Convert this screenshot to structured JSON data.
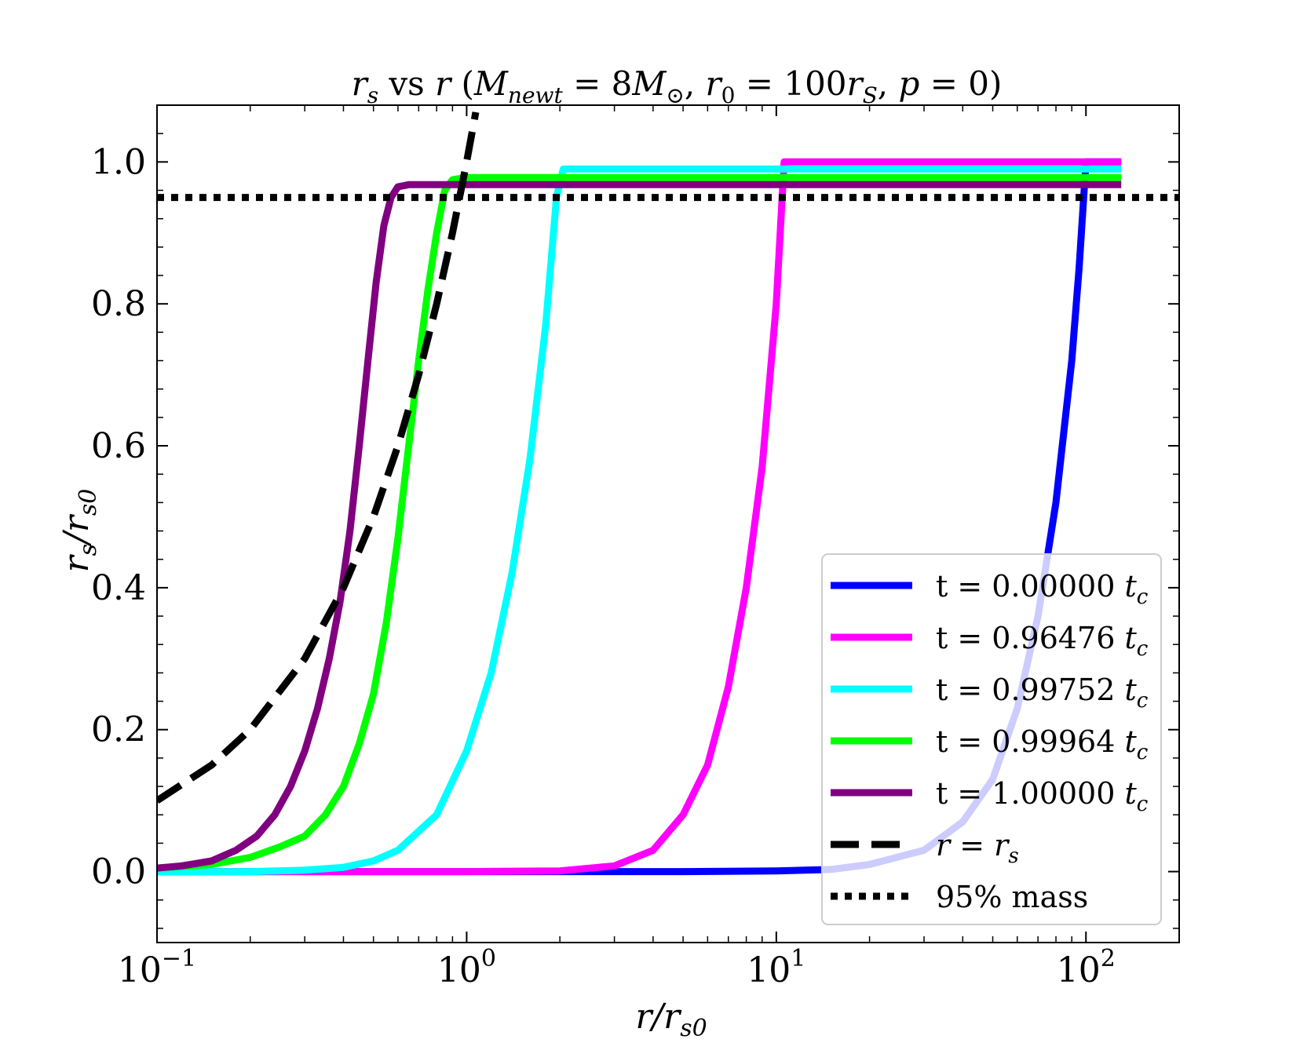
{
  "chart_data": {
    "type": "line",
    "title": "r_s vs r (M_newt = 8M_sun, r_0 = 100r_S, p = 0)",
    "title_parts": {
      "a": "r",
      "a_sub": "s",
      "vs": " vs ",
      "b": "r",
      "paren_open": " (",
      "m": "M",
      "m_sub": "newt",
      "eq1": " = 8",
      "m2": "M",
      "sun": "⊙",
      "comma1": ", ",
      "r0": "r",
      "r0_sub": "0",
      "eq2": " = 100",
      "rs": "r",
      "rs_sub": "S",
      "comma2": ", ",
      "p": "p",
      "eq3": " = 0)"
    },
    "xlabel": "r/r_s0",
    "xlabel_parts": {
      "main": "r/r",
      "sub": "s0"
    },
    "ylabel": "r_s/r_s0",
    "ylabel_parts": {
      "main": "r",
      "sub1": "s",
      "mid": "/r",
      "sub2": "s0"
    },
    "xscale": "log",
    "xlim": [
      0.1,
      200
    ],
    "ylim": [
      -0.1,
      1.08
    ],
    "x_ticks": [
      {
        "value": 0.1,
        "base": "10",
        "exp": "−1"
      },
      {
        "value": 1,
        "base": "10",
        "exp": "0"
      },
      {
        "value": 10,
        "base": "10",
        "exp": "1"
      },
      {
        "value": 100,
        "base": "10",
        "exp": "2"
      }
    ],
    "y_ticks": [
      "0.0",
      "0.2",
      "0.4",
      "0.6",
      "0.8",
      "1.0"
    ],
    "grid": false,
    "legend_position": "lower-right",
    "series": [
      {
        "name": "t = 0.00000 t_c",
        "label": "t = 0.00000 ",
        "unit": "t",
        "unit_sub": "c",
        "color": "#0000ff",
        "style": "solid",
        "x": [
          0.1,
          1,
          5,
          10,
          15,
          20,
          30,
          40,
          50,
          60,
          70,
          80,
          90,
          95,
          100,
          130
        ],
        "y": [
          0,
          0,
          0,
          0.001,
          0.003,
          0.01,
          0.03,
          0.07,
          0.13,
          0.23,
          0.36,
          0.52,
          0.72,
          0.85,
          1.0,
          1.0
        ]
      },
      {
        "name": "t = 0.96476 t_c",
        "label": "t = 0.96476 ",
        "unit": "t",
        "unit_sub": "c",
        "color": "#ff00ff",
        "style": "solid",
        "x": [
          0.1,
          1,
          2,
          3,
          4,
          5,
          6,
          7,
          8,
          9,
          10,
          10.6,
          15,
          130
        ],
        "y": [
          0,
          0,
          0.001,
          0.008,
          0.03,
          0.08,
          0.15,
          0.26,
          0.4,
          0.57,
          0.8,
          1.0,
          1.0,
          1.0
        ]
      },
      {
        "name": "t = 0.99752 t_c",
        "label": "t = 0.99752 ",
        "unit": "t",
        "unit_sub": "c",
        "color": "#00ffff",
        "style": "solid",
        "x": [
          0.1,
          0.2,
          0.3,
          0.4,
          0.5,
          0.6,
          0.8,
          1.0,
          1.2,
          1.4,
          1.6,
          1.8,
          1.95,
          2.05,
          3,
          130
        ],
        "y": [
          0,
          0,
          0.002,
          0.006,
          0.015,
          0.03,
          0.08,
          0.17,
          0.28,
          0.42,
          0.58,
          0.77,
          0.95,
          0.99,
          0.99,
          0.99
        ]
      },
      {
        "name": "t = 0.99964 t_c",
        "label": "t = 0.99964 ",
        "unit": "t",
        "unit_sub": "c",
        "color": "#00ff00",
        "style": "solid",
        "x": [
          0.1,
          0.15,
          0.2,
          0.25,
          0.3,
          0.35,
          0.4,
          0.45,
          0.5,
          0.55,
          0.6,
          0.65,
          0.7,
          0.75,
          0.8,
          0.85,
          0.9,
          1.0,
          130
        ],
        "y": [
          0.005,
          0.01,
          0.02,
          0.035,
          0.05,
          0.08,
          0.12,
          0.18,
          0.25,
          0.35,
          0.47,
          0.6,
          0.72,
          0.82,
          0.9,
          0.96,
          0.975,
          0.978,
          0.978
        ]
      },
      {
        "name": "t = 1.00000 t_c",
        "label": "t = 1.00000 ",
        "unit": "t",
        "unit_sub": "c",
        "color": "#800080",
        "style": "solid",
        "x": [
          0.1,
          0.12,
          0.15,
          0.18,
          0.21,
          0.24,
          0.27,
          0.3,
          0.33,
          0.36,
          0.39,
          0.42,
          0.45,
          0.48,
          0.51,
          0.54,
          0.57,
          0.6,
          0.65,
          0.8,
          130
        ],
        "y": [
          0.005,
          0.008,
          0.015,
          0.03,
          0.05,
          0.08,
          0.12,
          0.17,
          0.23,
          0.3,
          0.38,
          0.48,
          0.6,
          0.72,
          0.83,
          0.91,
          0.95,
          0.965,
          0.968,
          0.968,
          0.968
        ]
      },
      {
        "name": "r = r_s",
        "label": "r = r",
        "label_sub": "s",
        "color": "#000000",
        "style": "dashed",
        "x": [
          0.1,
          0.15,
          0.2,
          0.3,
          0.4,
          0.5,
          0.6,
          0.7,
          0.8,
          0.9,
          1.0,
          1.07
        ],
        "y": [
          0.1,
          0.15,
          0.2,
          0.3,
          0.4,
          0.5,
          0.6,
          0.7,
          0.8,
          0.9,
          1.0,
          1.07
        ]
      },
      {
        "name": "95% mass",
        "label": "95% mass",
        "color": "#000000",
        "style": "dotted",
        "x": [
          0.1,
          200
        ],
        "y": [
          0.95,
          0.95
        ]
      }
    ]
  }
}
